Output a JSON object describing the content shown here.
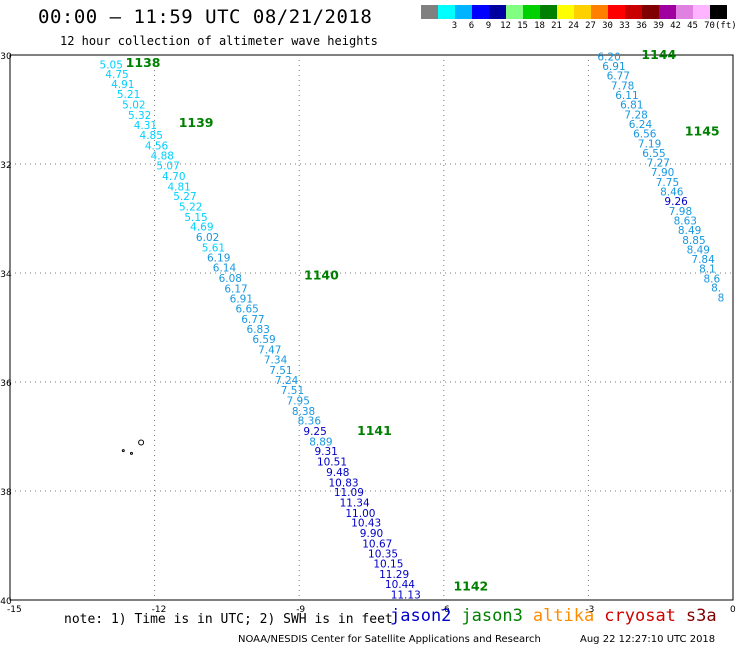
{
  "header": {
    "title": "00:00 – 11:59 UTC 08/21/2018",
    "subtitle": "12 hour collection of altimeter wave heights"
  },
  "color_legend": {
    "unit": "(ft)",
    "bins": [
      {
        "label": "",
        "color": "#808080"
      },
      {
        "label": "3",
        "color": "#00ffff"
      },
      {
        "label": "6",
        "color": "#00b4ff"
      },
      {
        "label": "9",
        "color": "#0000ff"
      },
      {
        "label": "12",
        "color": "#0000a0"
      },
      {
        "label": "15",
        "color": "#80ff80"
      },
      {
        "label": "18",
        "color": "#00d000"
      },
      {
        "label": "21",
        "color": "#008000"
      },
      {
        "label": "24",
        "color": "#ffff00"
      },
      {
        "label": "27",
        "color": "#ffd000"
      },
      {
        "label": "30",
        "color": "#ff8000"
      },
      {
        "label": "33",
        "color": "#ff0000"
      },
      {
        "label": "36",
        "color": "#c80000"
      },
      {
        "label": "39",
        "color": "#800000"
      },
      {
        "label": "42",
        "color": "#a000a0"
      },
      {
        "label": "45",
        "color": "#e080e0"
      },
      {
        "label": "70",
        "color": "#ffb4ff"
      },
      {
        "label": "",
        "color": "#000000"
      }
    ]
  },
  "map": {
    "lon_range": [
      -15,
      0
    ],
    "lat_range": [
      -40,
      -30
    ],
    "x_ticks": [
      "-15",
      "-12",
      "-9",
      "-6",
      "-3",
      "0"
    ],
    "y_ticks": [
      "-30",
      "-32",
      "-34",
      "-36",
      "-38",
      "-40"
    ],
    "colors": {
      "cyan": "#00d0ff",
      "skyblue": "#1898e0",
      "blue": "#0000c8",
      "green": "#008000"
    },
    "tracks": [
      {
        "labels": [
          {
            "text": "1138",
            "lon": -12.6,
            "lat": -30.15
          },
          {
            "text": "1139",
            "lon": -11.5,
            "lat": -31.25
          },
          {
            "text": "1140",
            "lon": -8.9,
            "lat": -34.05
          },
          {
            "text": "1141",
            "lon": -7.8,
            "lat": -36.9
          },
          {
            "text": "1142",
            "lon": -5.8,
            "lat": -39.75
          }
        ],
        "points": [
          {
            "v": "5.05",
            "lon": -12.9,
            "lat": -30.17,
            "c": "cyan"
          },
          {
            "v": "4.75",
            "lon": -12.78,
            "lat": -30.35,
            "c": "cyan"
          },
          {
            "v": "4.91",
            "lon": -12.66,
            "lat": -30.53,
            "c": "cyan"
          },
          {
            "v": "5.21",
            "lon": -12.54,
            "lat": -30.72,
            "c": "cyan"
          },
          {
            "v": "5.02",
            "lon": -12.43,
            "lat": -30.91,
            "c": "cyan"
          },
          {
            "v": "5.32",
            "lon": -12.31,
            "lat": -31.1,
            "c": "cyan"
          },
          {
            "v": "4.31",
            "lon": -12.19,
            "lat": -31.28,
            "c": "cyan"
          },
          {
            "v": "4.85",
            "lon": -12.07,
            "lat": -31.47,
            "c": "cyan"
          },
          {
            "v": "4.56",
            "lon": -11.96,
            "lat": -31.66,
            "c": "cyan"
          },
          {
            "v": "4.88",
            "lon": -11.84,
            "lat": -31.84,
            "c": "cyan"
          },
          {
            "v": "5.07",
            "lon": -11.72,
            "lat": -32.03,
            "c": "cyan"
          },
          {
            "v": "4.70",
            "lon": -11.6,
            "lat": -32.22,
            "c": "cyan"
          },
          {
            "v": "4.81",
            "lon": -11.49,
            "lat": -32.41,
            "c": "cyan"
          },
          {
            "v": "5.27",
            "lon": -11.37,
            "lat": -32.59,
            "c": "cyan"
          },
          {
            "v": "5.22",
            "lon": -11.25,
            "lat": -32.78,
            "c": "cyan"
          },
          {
            "v": "5.15",
            "lon": -11.14,
            "lat": -32.97,
            "c": "cyan"
          },
          {
            "v": "4.69",
            "lon": -11.02,
            "lat": -33.15,
            "c": "cyan"
          },
          {
            "v": "6.02",
            "lon": -10.9,
            "lat": -33.34,
            "c": "skyblue"
          },
          {
            "v": "5.61",
            "lon": -10.78,
            "lat": -33.53,
            "c": "cyan"
          },
          {
            "v": "6.19",
            "lon": -10.67,
            "lat": -33.72,
            "c": "skyblue"
          },
          {
            "v": "6.14",
            "lon": -10.55,
            "lat": -33.9,
            "c": "skyblue"
          },
          {
            "v": "6.08",
            "lon": -10.43,
            "lat": -34.09,
            "c": "skyblue"
          },
          {
            "v": "6.17",
            "lon": -10.31,
            "lat": -34.28,
            "c": "skyblue"
          },
          {
            "v": "6.91",
            "lon": -10.2,
            "lat": -34.47,
            "c": "skyblue"
          },
          {
            "v": "6.65",
            "lon": -10.08,
            "lat": -34.65,
            "c": "skyblue"
          },
          {
            "v": "6.77",
            "lon": -9.96,
            "lat": -34.84,
            "c": "skyblue"
          },
          {
            "v": "6.83",
            "lon": -9.85,
            "lat": -35.03,
            "c": "skyblue"
          },
          {
            "v": "6.59",
            "lon": -9.73,
            "lat": -35.21,
            "c": "skyblue"
          },
          {
            "v": "7.47",
            "lon": -9.61,
            "lat": -35.4,
            "c": "skyblue"
          },
          {
            "v": "7.34",
            "lon": -9.49,
            "lat": -35.59,
            "c": "skyblue"
          },
          {
            "v": "7.51",
            "lon": -9.38,
            "lat": -35.78,
            "c": "skyblue"
          },
          {
            "v": "7.24",
            "lon": -9.26,
            "lat": -35.96,
            "c": "skyblue"
          },
          {
            "v": "7.51",
            "lon": -9.14,
            "lat": -36.15,
            "c": "skyblue"
          },
          {
            "v": "7.95",
            "lon": -9.02,
            "lat": -36.34,
            "c": "skyblue"
          },
          {
            "v": "8.38",
            "lon": -8.91,
            "lat": -36.53,
            "c": "skyblue"
          },
          {
            "v": "8.36",
            "lon": -8.79,
            "lat": -36.71,
            "c": "skyblue"
          },
          {
            "v": "9.25",
            "lon": -8.67,
            "lat": -36.9,
            "c": "blue"
          },
          {
            "v": "8.89",
            "lon": -8.55,
            "lat": -37.09,
            "c": "skyblue"
          },
          {
            "v": "9.31",
            "lon": -8.44,
            "lat": -37.27,
            "c": "blue"
          },
          {
            "v": "10.51",
            "lon": -8.32,
            "lat": -37.46,
            "c": "blue"
          },
          {
            "v": "9.48",
            "lon": -8.2,
            "lat": -37.65,
            "c": "blue"
          },
          {
            "v": "10.83",
            "lon": -8.08,
            "lat": -37.84,
            "c": "blue"
          },
          {
            "v": "11.09",
            "lon": -7.97,
            "lat": -38.02,
            "c": "blue"
          },
          {
            "v": "11.34",
            "lon": -7.85,
            "lat": -38.21,
            "c": "blue"
          },
          {
            "v": "11.00",
            "lon": -7.73,
            "lat": -38.4,
            "c": "blue"
          },
          {
            "v": "10.43",
            "lon": -7.61,
            "lat": -38.58,
            "c": "blue"
          },
          {
            "v": "9.90",
            "lon": -7.5,
            "lat": -38.77,
            "c": "blue"
          },
          {
            "v": "10.67",
            "lon": -7.38,
            "lat": -38.96,
            "c": "blue"
          },
          {
            "v": "10.35",
            "lon": -7.26,
            "lat": -39.15,
            "c": "blue"
          },
          {
            "v": "10.15",
            "lon": -7.15,
            "lat": -39.33,
            "c": "blue"
          },
          {
            "v": "11.29",
            "lon": -7.03,
            "lat": -39.52,
            "c": "blue"
          },
          {
            "v": "10.44",
            "lon": -6.91,
            "lat": -39.71,
            "c": "blue"
          },
          {
            "v": "11.13",
            "lon": -6.79,
            "lat": -39.9,
            "c": "blue"
          }
        ]
      },
      {
        "labels": [
          {
            "text": "1144",
            "lon": -1.9,
            "lat": -30.0
          },
          {
            "text": "1145",
            "lon": -1.0,
            "lat": -31.4
          }
        ],
        "points": [
          {
            "v": "6.20",
            "lon": -2.57,
            "lat": -30.03,
            "c": "skyblue"
          },
          {
            "v": "6.91",
            "lon": -2.47,
            "lat": -30.2,
            "c": "skyblue"
          },
          {
            "v": "6.77",
            "lon": -2.38,
            "lat": -30.38,
            "c": "skyblue"
          },
          {
            "v": "7.78",
            "lon": -2.29,
            "lat": -30.56,
            "c": "skyblue"
          },
          {
            "v": "6.11",
            "lon": -2.2,
            "lat": -30.73,
            "c": "skyblue"
          },
          {
            "v": "6.81",
            "lon": -2.1,
            "lat": -30.91,
            "c": "skyblue"
          },
          {
            "v": "7.28",
            "lon": -2.01,
            "lat": -31.09,
            "c": "skyblue"
          },
          {
            "v": "6.24",
            "lon": -1.92,
            "lat": -31.27,
            "c": "skyblue"
          },
          {
            "v": "6.56",
            "lon": -1.83,
            "lat": -31.44,
            "c": "skyblue"
          },
          {
            "v": "7.19",
            "lon": -1.73,
            "lat": -31.62,
            "c": "skyblue"
          },
          {
            "v": "6.55",
            "lon": -1.64,
            "lat": -31.8,
            "c": "skyblue"
          },
          {
            "v": "7.27",
            "lon": -1.55,
            "lat": -31.97,
            "c": "skyblue"
          },
          {
            "v": "7.90",
            "lon": -1.46,
            "lat": -32.15,
            "c": "skyblue"
          },
          {
            "v": "7.75",
            "lon": -1.36,
            "lat": -32.33,
            "c": "skyblue"
          },
          {
            "v": "8.46",
            "lon": -1.27,
            "lat": -32.5,
            "c": "skyblue"
          },
          {
            "v": "9.26",
            "lon": -1.18,
            "lat": -32.68,
            "c": "blue"
          },
          {
            "v": "7.98",
            "lon": -1.09,
            "lat": -32.86,
            "c": "skyblue"
          },
          {
            "v": "8.63",
            "lon": -0.99,
            "lat": -33.04,
            "c": "skyblue"
          },
          {
            "v": "8.49",
            "lon": -0.9,
            "lat": -33.21,
            "c": "skyblue"
          },
          {
            "v": "8.85",
            "lon": -0.81,
            "lat": -33.39,
            "c": "skyblue"
          },
          {
            "v": "8.49",
            "lon": -0.72,
            "lat": -33.57,
            "c": "skyblue"
          },
          {
            "v": "7.84",
            "lon": -0.62,
            "lat": -33.74,
            "c": "skyblue"
          },
          {
            "v": "8.1",
            "lon": -0.53,
            "lat": -33.92,
            "c": "skyblue"
          },
          {
            "v": "8.6",
            "lon": -0.44,
            "lat": -34.1,
            "c": "skyblue"
          },
          {
            "v": "8.",
            "lon": -0.35,
            "lat": -34.27,
            "c": "skyblue"
          },
          {
            "v": "8",
            "lon": -0.25,
            "lat": -34.45,
            "c": "skyblue"
          }
        ]
      }
    ],
    "islands": [
      {
        "lon": -12.28,
        "lat": -37.11
      },
      {
        "lon": -12.65,
        "lat": -37.26
      },
      {
        "lon": -12.48,
        "lat": -37.31
      }
    ]
  },
  "note": "note: 1) Time is in UTC; 2) SWH is in feet",
  "satellites": [
    {
      "name": "jason2",
      "color": "#0000c8"
    },
    {
      "name": "jason3",
      "color": "#008000"
    },
    {
      "name": "altika",
      "color": "#ff8c00"
    },
    {
      "name": "cryosat",
      "color": "#d00000"
    },
    {
      "name": "s3a",
      "color": "#800000"
    }
  ],
  "footer": {
    "credit": "NOAA/NESDIS Center for Satellite Applications and Research",
    "timestamp": "Aug 22 12:27:10 UTC 2018"
  }
}
